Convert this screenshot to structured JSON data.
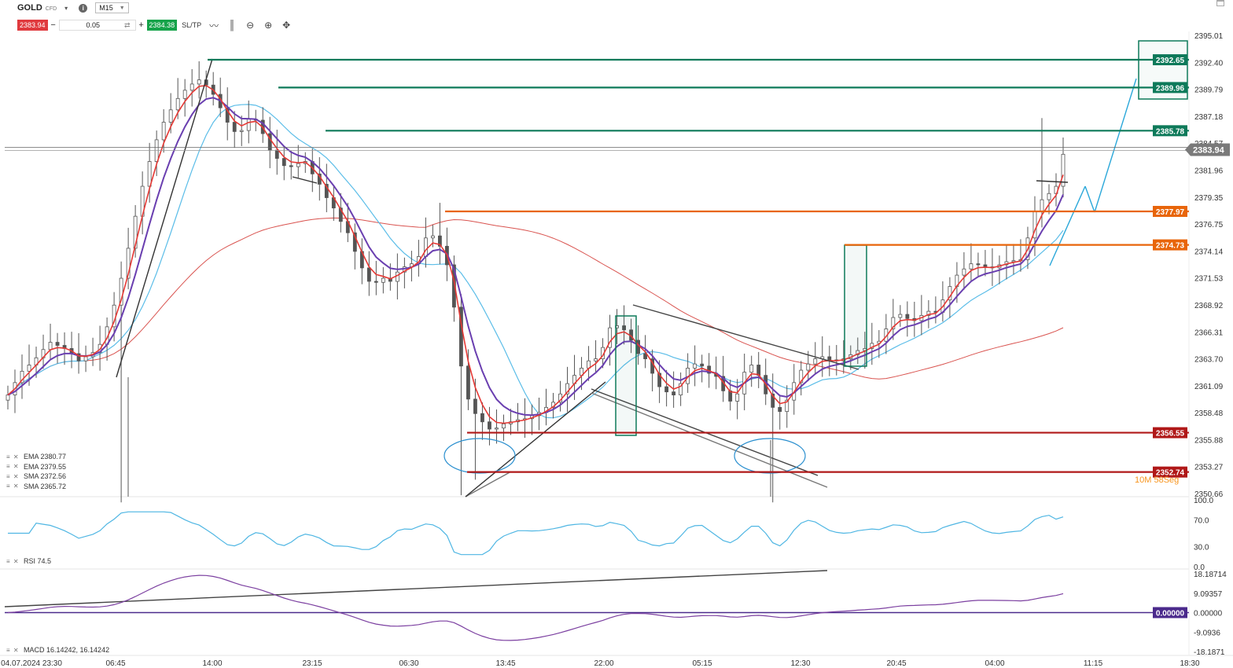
{
  "toolbar": {
    "symbol": "GOLD",
    "instrument_type": "CFD",
    "timeframe": "M15",
    "sell_price": "2383.94",
    "quantity": "0.05",
    "buy_price": "2384.38",
    "sltp_label": "SL/TP"
  },
  "legend": {
    "ema1": "EMA 2380.77",
    "ema2": "EMA 2379.55",
    "sma1": "SMA 2372.56",
    "sma2": "SMA 2365.72",
    "rsi": "RSI 74.5",
    "macd": "MACD 16.14242, 16.14242"
  },
  "countdown": "10M 58Seg",
  "colors": {
    "up": "#16a34a",
    "down": "#e03a3e",
    "green_level": "#0e7a5a",
    "orange_level": "#e8650a",
    "red_level": "#b01818",
    "ema_red": "#e53935",
    "ema_purple": "#6a3fb0",
    "sma_blue": "#5bbde8",
    "sma_red": "#d9534f",
    "rsi_line": "#4fb6e3",
    "macd_line": "#7b3fa0"
  },
  "chart_data": {
    "type": "candlestick",
    "symbol": "GOLD",
    "timeframe": "M15",
    "y_axis_ticks": [
      "2395.01",
      "2392.40",
      "2389.79",
      "2387.18",
      "2384.57",
      "2381.96",
      "2379.35",
      "2376.75",
      "2374.14",
      "2371.53",
      "2368.92",
      "2366.31",
      "2363.70",
      "2361.09",
      "2358.48",
      "2355.88",
      "2353.27",
      "2350.66"
    ],
    "ylim": [
      2350.66,
      2395.01
    ],
    "x_axis_labels": [
      "04.07.2024 23:30",
      "06:45",
      "14:00",
      "23:15",
      "06:30",
      "13:45",
      "22:00",
      "05:15",
      "12:30",
      "20:45",
      "04:00",
      "11:15",
      "18:30"
    ],
    "current_price": 2383.94,
    "price_levels": [
      {
        "label": "2392.65",
        "value": 2392.65,
        "kind": "green"
      },
      {
        "label": "2389.96",
        "value": 2389.96,
        "kind": "green"
      },
      {
        "label": "2385.78",
        "value": 2385.78,
        "kind": "green"
      },
      {
        "label": "2377.97",
        "value": 2377.97,
        "kind": "orange"
      },
      {
        "label": "2374.73",
        "value": 2374.73,
        "kind": "orange"
      },
      {
        "label": "2356.55",
        "value": 2356.55,
        "kind": "red"
      },
      {
        "label": "2352.74",
        "value": 2352.74,
        "kind": "red"
      }
    ],
    "close_series": [
      2360.2,
      2361.4,
      2362.5,
      2363.1,
      2363.8,
      2364.6,
      2365.3,
      2365.0,
      2364.7,
      2364.2,
      2363.5,
      2363.9,
      2364.3,
      2365.1,
      2366.8,
      2368.9,
      2371.5,
      2374.4,
      2377.5,
      2380.4,
      2382.8,
      2384.9,
      2386.6,
      2387.8,
      2388.9,
      2389.7,
      2390.3,
      2390.7,
      2390.2,
      2389.3,
      2388.0,
      2386.6,
      2385.7,
      2385.8,
      2386.9,
      2386.8,
      2385.5,
      2383.9,
      2383.1,
      2382.4,
      2382.3,
      2382.6,
      2382.8,
      2381.6,
      2380.6,
      2379.3,
      2378.3,
      2377.0,
      2375.9,
      2374.1,
      2372.5,
      2371.2,
      2371.1,
      2371.5,
      2371.2,
      2372.1,
      2372.6,
      2372.9,
      2373.6,
      2375.4,
      2375.6,
      2374.6,
      2372.8,
      2368.7,
      2363.0,
      2359.8,
      2358.4,
      2357.6,
      2356.9,
      2357.0,
      2357.4,
      2357.6,
      2357.8,
      2357.9,
      2358.2,
      2358.5,
      2359.0,
      2359.5,
      2360.3,
      2361.3,
      2362.1,
      2362.8,
      2363.5,
      2363.7,
      2364.8,
      2366.7,
      2366.9,
      2366.5,
      2365.5,
      2364.2,
      2363.7,
      2362.3,
      2361.0,
      2360.5,
      2360.2,
      2361.3,
      2362.8,
      2363.2,
      2363.0,
      2362.3,
      2362.0,
      2360.6,
      2359.6,
      2360.3,
      2362.4,
      2363.1,
      2362.1,
      2360.3,
      2359.0,
      2358.6,
      2359.7,
      2361.4,
      2362.6,
      2363.2,
      2363.7,
      2363.9,
      2363.6,
      2363.5,
      2363.7,
      2364.1,
      2364.5,
      2364.7,
      2365.2,
      2365.4,
      2366.6,
      2367.7,
      2368.0,
      2367.6,
      2367.4,
      2367.9,
      2368.3,
      2368.2,
      2369.4,
      2370.7,
      2371.8,
      2372.4,
      2372.9,
      2372.8,
      2372.6,
      2372.5,
      2372.8,
      2373.1,
      2373.2,
      2373.3,
      2375.4,
      2378.0,
      2379.1,
      2379.7,
      2380.4,
      2383.5
    ]
  },
  "rsi": {
    "label": "RSI 74.5",
    "value": 74.5,
    "axis_ticks": [
      "100.0",
      "70.0",
      "30.0",
      "0.0"
    ]
  },
  "macd": {
    "label": "MACD 16.14242, 16.14242",
    "axis_ticks": [
      "18.18714",
      "9.09357",
      "0.00000",
      "-9.0936",
      "-18.1871"
    ],
    "zero_label": "0.00000"
  }
}
